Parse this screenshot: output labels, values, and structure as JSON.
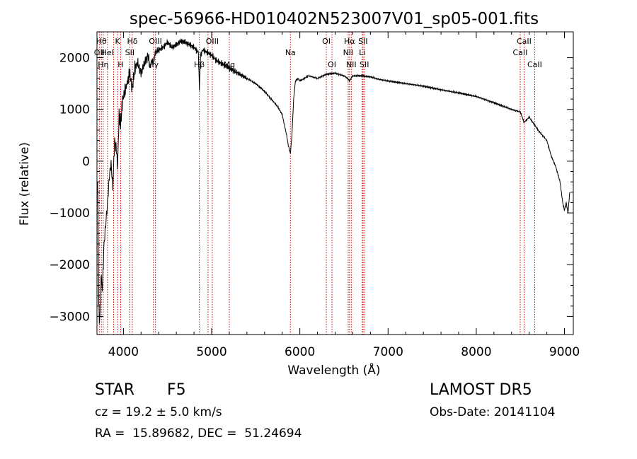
{
  "chart_data": {
    "type": "line",
    "title": "spec-56966-HD010402N523007V01_sp05-001.fits",
    "xlabel": "Wavelength (Å)",
    "ylabel": "Flux (relative)",
    "xlim": [
      3700,
      9100
    ],
    "ylim": [
      -3350,
      2500
    ],
    "x_ticks": [
      4000,
      5000,
      6000,
      7000,
      8000,
      9000
    ],
    "y_ticks": [
      -3000,
      -2000,
      -1000,
      0,
      1000,
      2000
    ],
    "grid": false,
    "line_color": "#000000",
    "marker_color": "#cc0000",
    "series": [
      {
        "x": [
          3700,
          3710,
          3720,
          3730,
          3740,
          3750,
          3760,
          3780,
          3800,
          3820,
          3840,
          3860,
          3880,
          3900,
          3920,
          3934,
          3950,
          3968,
          3990,
          4010,
          4040,
          4070,
          4101,
          4130,
          4160,
          4200,
          4240,
          4280,
          4300,
          4320,
          4340,
          4360,
          4400,
          4450,
          4500,
          4550,
          4600,
          4650,
          4700,
          4750,
          4800,
          4850,
          4861,
          4875,
          4900,
          4950,
          5000,
          5050,
          5100,
          5150,
          5200,
          5300,
          5400,
          5500,
          5600,
          5700,
          5750,
          5800,
          5850,
          5870,
          5893,
          5910,
          5930,
          5950,
          5980,
          6000,
          6050,
          6100,
          6200,
          6300,
          6400,
          6500,
          6540,
          6563,
          6580,
          6600,
          6700,
          6800,
          6900,
          7000,
          7200,
          7400,
          7600,
          7800,
          8000,
          8200,
          8400,
          8500,
          8542,
          8600,
          8662,
          8700,
          8800,
          8850,
          8900,
          8950,
          8980,
          9000,
          9020,
          9040,
          9060
        ],
        "values": [
          -400,
          -600,
          -2800,
          -3100,
          -2700,
          -2200,
          -2500,
          -1600,
          -1200,
          -800,
          -300,
          -50,
          -500,
          400,
          200,
          -100,
          900,
          700,
          1200,
          1300,
          1500,
          1700,
          1400,
          1800,
          1900,
          1700,
          1900,
          2050,
          1800,
          1950,
          1900,
          2100,
          2150,
          2200,
          2300,
          2200,
          2250,
          2320,
          2300,
          2250,
          2200,
          2100,
          1400,
          2050,
          2150,
          2100,
          2050,
          1950,
          1900,
          1850,
          1800,
          1700,
          1600,
          1500,
          1350,
          1150,
          1050,
          900,
          500,
          300,
          150,
          500,
          1200,
          1550,
          1600,
          1550,
          1600,
          1650,
          1600,
          1680,
          1700,
          1650,
          1600,
          1550,
          1600,
          1650,
          1650,
          1630,
          1580,
          1550,
          1500,
          1450,
          1380,
          1320,
          1250,
          1130,
          1000,
          950,
          750,
          850,
          700,
          600,
          400,
          100,
          -100,
          -400,
          -800,
          -950,
          -800,
          -1000,
          -600
        ]
      }
    ],
    "line_markers": [
      {
        "x": 3727,
        "label": "OII",
        "row": 2
      },
      {
        "x": 3750,
        "label": "Hθ",
        "row": 1
      },
      {
        "x": 3771,
        "label": "Hη",
        "row": 3
      },
      {
        "x": 3819,
        "label": "HeI",
        "row": 2
      },
      {
        "x": 3889,
        "label": "",
        "row": 0
      },
      {
        "x": 3934,
        "label": "K",
        "row": 1
      },
      {
        "x": 3968,
        "label": "H",
        "row": 3
      },
      {
        "x": 4072,
        "label": "SII",
        "row": 2
      },
      {
        "x": 4101,
        "label": "Hδ",
        "row": 1
      },
      {
        "x": 4340,
        "label": "Hγ",
        "row": 3
      },
      {
        "x": 4363,
        "label": "OIII",
        "row": 1
      },
      {
        "x": 4861,
        "label": "Hβ",
        "row": 3
      },
      {
        "x": 4959,
        "label": "",
        "row": 0
      },
      {
        "x": 5007,
        "label": "OIII",
        "row": 1
      },
      {
        "x": 5200,
        "label": "Mg",
        "row": 3
      },
      {
        "x": 5893,
        "label": "Na",
        "row": 2
      },
      {
        "x": 6300,
        "label": "OI",
        "row": 1
      },
      {
        "x": 6364,
        "label": "OI",
        "row": 3
      },
      {
        "x": 6548,
        "label": "NII",
        "row": 2
      },
      {
        "x": 6563,
        "label": "Hα",
        "row": 1
      },
      {
        "x": 6583,
        "label": "NII",
        "row": 3
      },
      {
        "x": 6707,
        "label": "Li",
        "row": 2
      },
      {
        "x": 6716,
        "label": "SII",
        "row": 1
      },
      {
        "x": 6731,
        "label": "SII",
        "row": 3
      },
      {
        "x": 8498,
        "label": "CaII",
        "row": 2
      },
      {
        "x": 8542,
        "label": "CaII",
        "row": 1
      },
      {
        "x": 8662,
        "label": "CaII",
        "row": 3
      }
    ]
  },
  "info": {
    "object_class": "STAR",
    "subclass": "F5",
    "redshift": "cz = 19.2 ± 5.0 km/s",
    "coords": "RA =  15.89682, DEC =  51.24694",
    "survey": "LAMOST DR5",
    "obs_date": "Obs-Date: 20141104"
  }
}
